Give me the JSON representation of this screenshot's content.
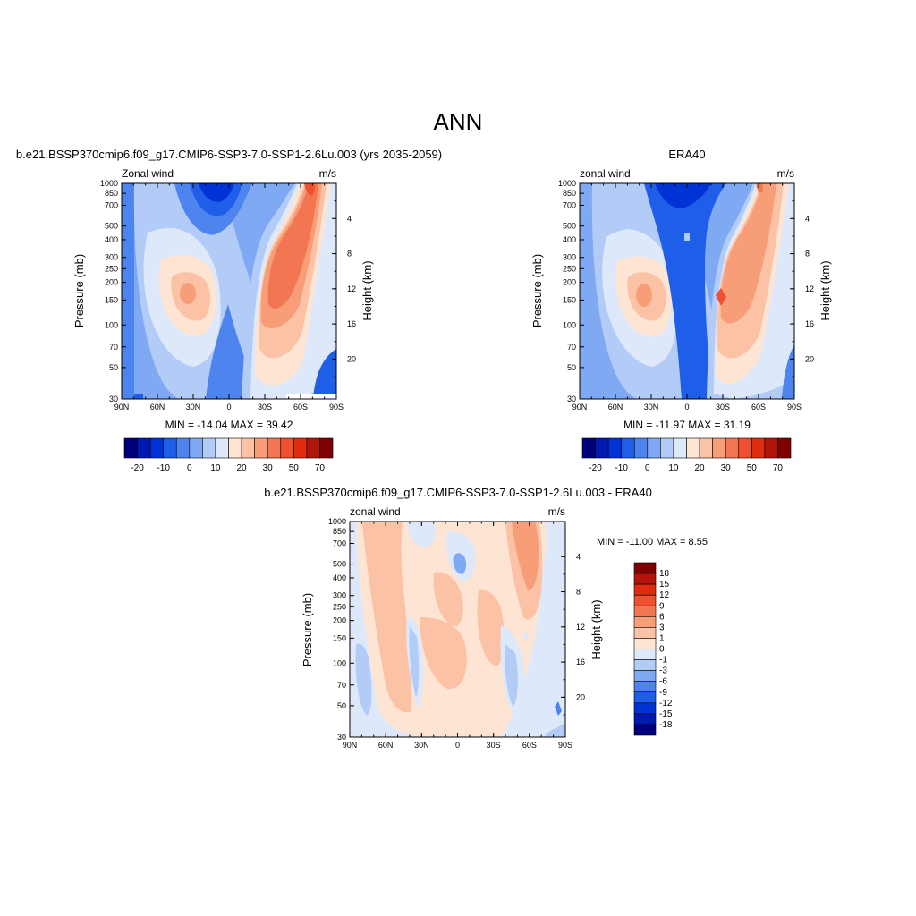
{
  "page": {
    "title": "ANN"
  },
  "chart_data": [
    {
      "type": "heatmap",
      "title": "b.e21.BSSP370cmip6.f09_g17.CMIP6-SSP3-7.0-SSP1-2.6Lu.003 (yrs 2035-2059)",
      "left_label": "Zonal wind",
      "right_label": "m/s",
      "ylabel": "Pressure (mb)",
      "ylabel_right": "Height (km)",
      "x_ticks": [
        "90N",
        "60N",
        "30N",
        "0",
        "30S",
        "60S",
        "90S"
      ],
      "y_ticks": [
        30,
        50,
        70,
        100,
        150,
        200,
        250,
        300,
        400,
        500,
        700,
        850,
        1000
      ],
      "y_right_ticks": [
        20,
        16,
        12,
        8,
        4
      ],
      "ylim": [
        1000,
        30
      ],
      "stats": "MIN = -14.04  MAX =  39.42",
      "colorbar": {
        "colors": [
          "#00007f",
          "#0019b0",
          "#0033d6",
          "#1f5ee8",
          "#4d84ee",
          "#7fa9f2",
          "#b3ccf7",
          "#dde8fb",
          "#fde4d3",
          "#fbc2a6",
          "#f79d78",
          "#f37652",
          "#ee5030",
          "#e02d12",
          "#b3150a",
          "#7f0000"
        ],
        "labels": [
          "-20",
          "-10",
          "0",
          "10",
          "20",
          "30",
          "50",
          "70"
        ]
      }
    },
    {
      "type": "heatmap",
      "title": "ERA40",
      "left_label": "zonal wind",
      "right_label": "m/s",
      "x_ticks": [
        "90N",
        "60N",
        "30N",
        "0",
        "30S",
        "60S",
        "90S"
      ],
      "y_ticks": [
        30,
        50,
        70,
        100,
        150,
        200,
        250,
        300,
        400,
        500,
        700,
        850,
        1000
      ],
      "y_right_ticks": [
        20,
        16,
        12,
        8,
        4
      ],
      "ylabel": "Pressure (mb)",
      "ylabel_right": "Height (km)",
      "ylim": [
        1000,
        30
      ],
      "stats": "MIN = -11.97  MAX =  31.19",
      "colorbar": {
        "colors": [
          "#00007f",
          "#0019b0",
          "#0033d6",
          "#1f5ee8",
          "#4d84ee",
          "#7fa9f2",
          "#b3ccf7",
          "#dde8fb",
          "#fde4d3",
          "#fbc2a6",
          "#f79d78",
          "#f37652",
          "#ee5030",
          "#e02d12",
          "#b3150a",
          "#7f0000"
        ],
        "labels": [
          "-20",
          "-10",
          "0",
          "10",
          "20",
          "30",
          "50",
          "70"
        ]
      }
    },
    {
      "type": "heatmap",
      "title": "b.e21.BSSP370cmip6.f09_g17.CMIP6-SSP3-7.0-SSP1-2.6Lu.003 - ERA40",
      "left_label": "zonal wind",
      "right_label": "m/s",
      "x_ticks": [
        "90N",
        "60N",
        "30N",
        "0",
        "30S",
        "60S",
        "90S"
      ],
      "y_ticks": [
        30,
        50,
        70,
        100,
        150,
        200,
        250,
        300,
        400,
        500,
        700,
        850,
        1000
      ],
      "y_right_ticks": [
        20,
        16,
        12,
        8,
        4
      ],
      "ylabel": "Pressure (mb)",
      "ylabel_right": "Height (km)",
      "ylim": [
        1000,
        30
      ],
      "stats": "MIN = -11.00  MAX =   8.55",
      "colorbar": {
        "colors": [
          "#00007f",
          "#0019b0",
          "#0033d6",
          "#1f5ee8",
          "#4d84ee",
          "#7fa9f2",
          "#b3ccf7",
          "#dde8fb",
          "#fde4d3",
          "#fbc2a6",
          "#f79d78",
          "#f37652",
          "#ee5030",
          "#e02d12",
          "#b3150a",
          "#7f0000"
        ],
        "labels": [
          "18",
          "15",
          "12",
          "9",
          "6",
          "3",
          "1",
          "0",
          "-1",
          "-3",
          "-6",
          "-9",
          "-12",
          "-15",
          "-18"
        ]
      }
    }
  ]
}
